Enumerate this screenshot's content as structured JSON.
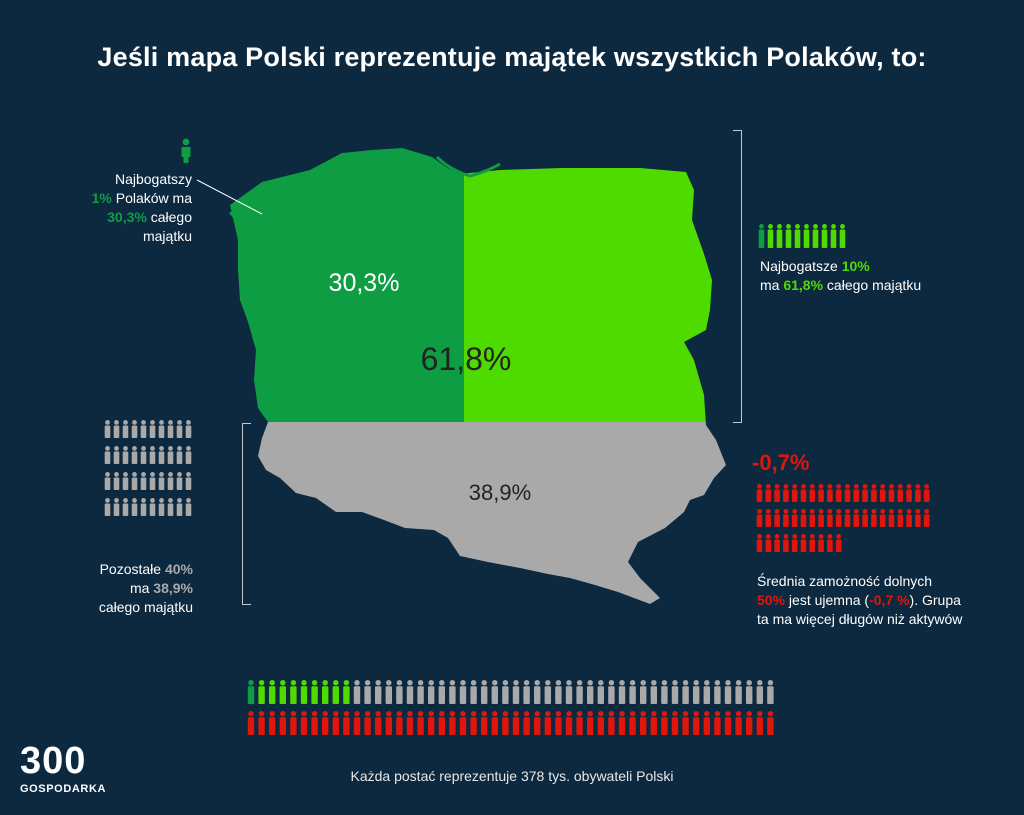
{
  "title": "Jeśli mapa Polski reprezentuje majątek wszystkich Polaków, to:",
  "map": {
    "richest_1_pct_label": "30,3%",
    "richest_10_pct_label": "61,8%",
    "rest_40_pct_label": "38,9%"
  },
  "richest_1": {
    "line1": "Najbogatszy",
    "pct": "1%",
    "line2_rest": " Polaków ma",
    "value": "30,3%",
    "line3_rest": " całego majątku"
  },
  "richest_10": {
    "line1_start": "Najbogatsze ",
    "pct": "10%",
    "line2_start": "ma ",
    "value": "61,8%",
    "line2_rest": " całego majątku"
  },
  "rest_40": {
    "line1_start": "Pozostałe ",
    "pct": "40%",
    "line2_start": "ma ",
    "value": "38,9%",
    "line3": "całego majątku"
  },
  "bottom_50": {
    "value": "-0,7%",
    "line1": "Średnia zamożność dolnych",
    "pct": "50%",
    "line2_mid": " jest ujemna (",
    "neg": "-0,7 %",
    "line2_end": "). Grupa",
    "line3": "ta ma więcej długów niż aktywów"
  },
  "people_icons": {
    "richest_1": 1,
    "richest_10": 10,
    "rest_40": 40,
    "bottom_50": 50
  },
  "footer": "Każda postać reprezentuje 378 tys. obywateli Polski",
  "logo": {
    "number": "300",
    "name": "GOSPODARKA"
  },
  "colors": {
    "background": "#0c2940",
    "dark_green": "#0f9d44",
    "light_green": "#4fdb00",
    "gray": "#a9a9a9",
    "red": "#e0150c"
  }
}
